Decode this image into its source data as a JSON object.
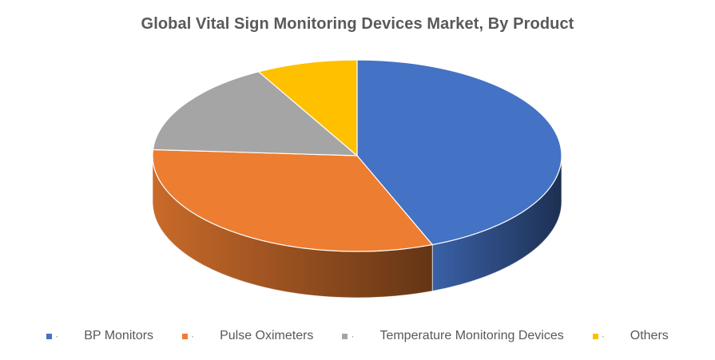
{
  "chart_data": {
    "type": "pie",
    "title": "Global Vital Sign Monitoring Devices Market, By Product",
    "categories": [
      "BP Monitors",
      "Pulse Oximeters",
      "Temperature Monitoring Devices",
      "Others"
    ],
    "values": [
      44,
      32,
      16,
      8
    ],
    "value_unit": "percent (estimated)",
    "colors": [
      "#4472C4",
      "#ED7D31",
      "#A5A5A5",
      "#FFC000"
    ],
    "legend_position": "bottom",
    "style": "3d"
  }
}
